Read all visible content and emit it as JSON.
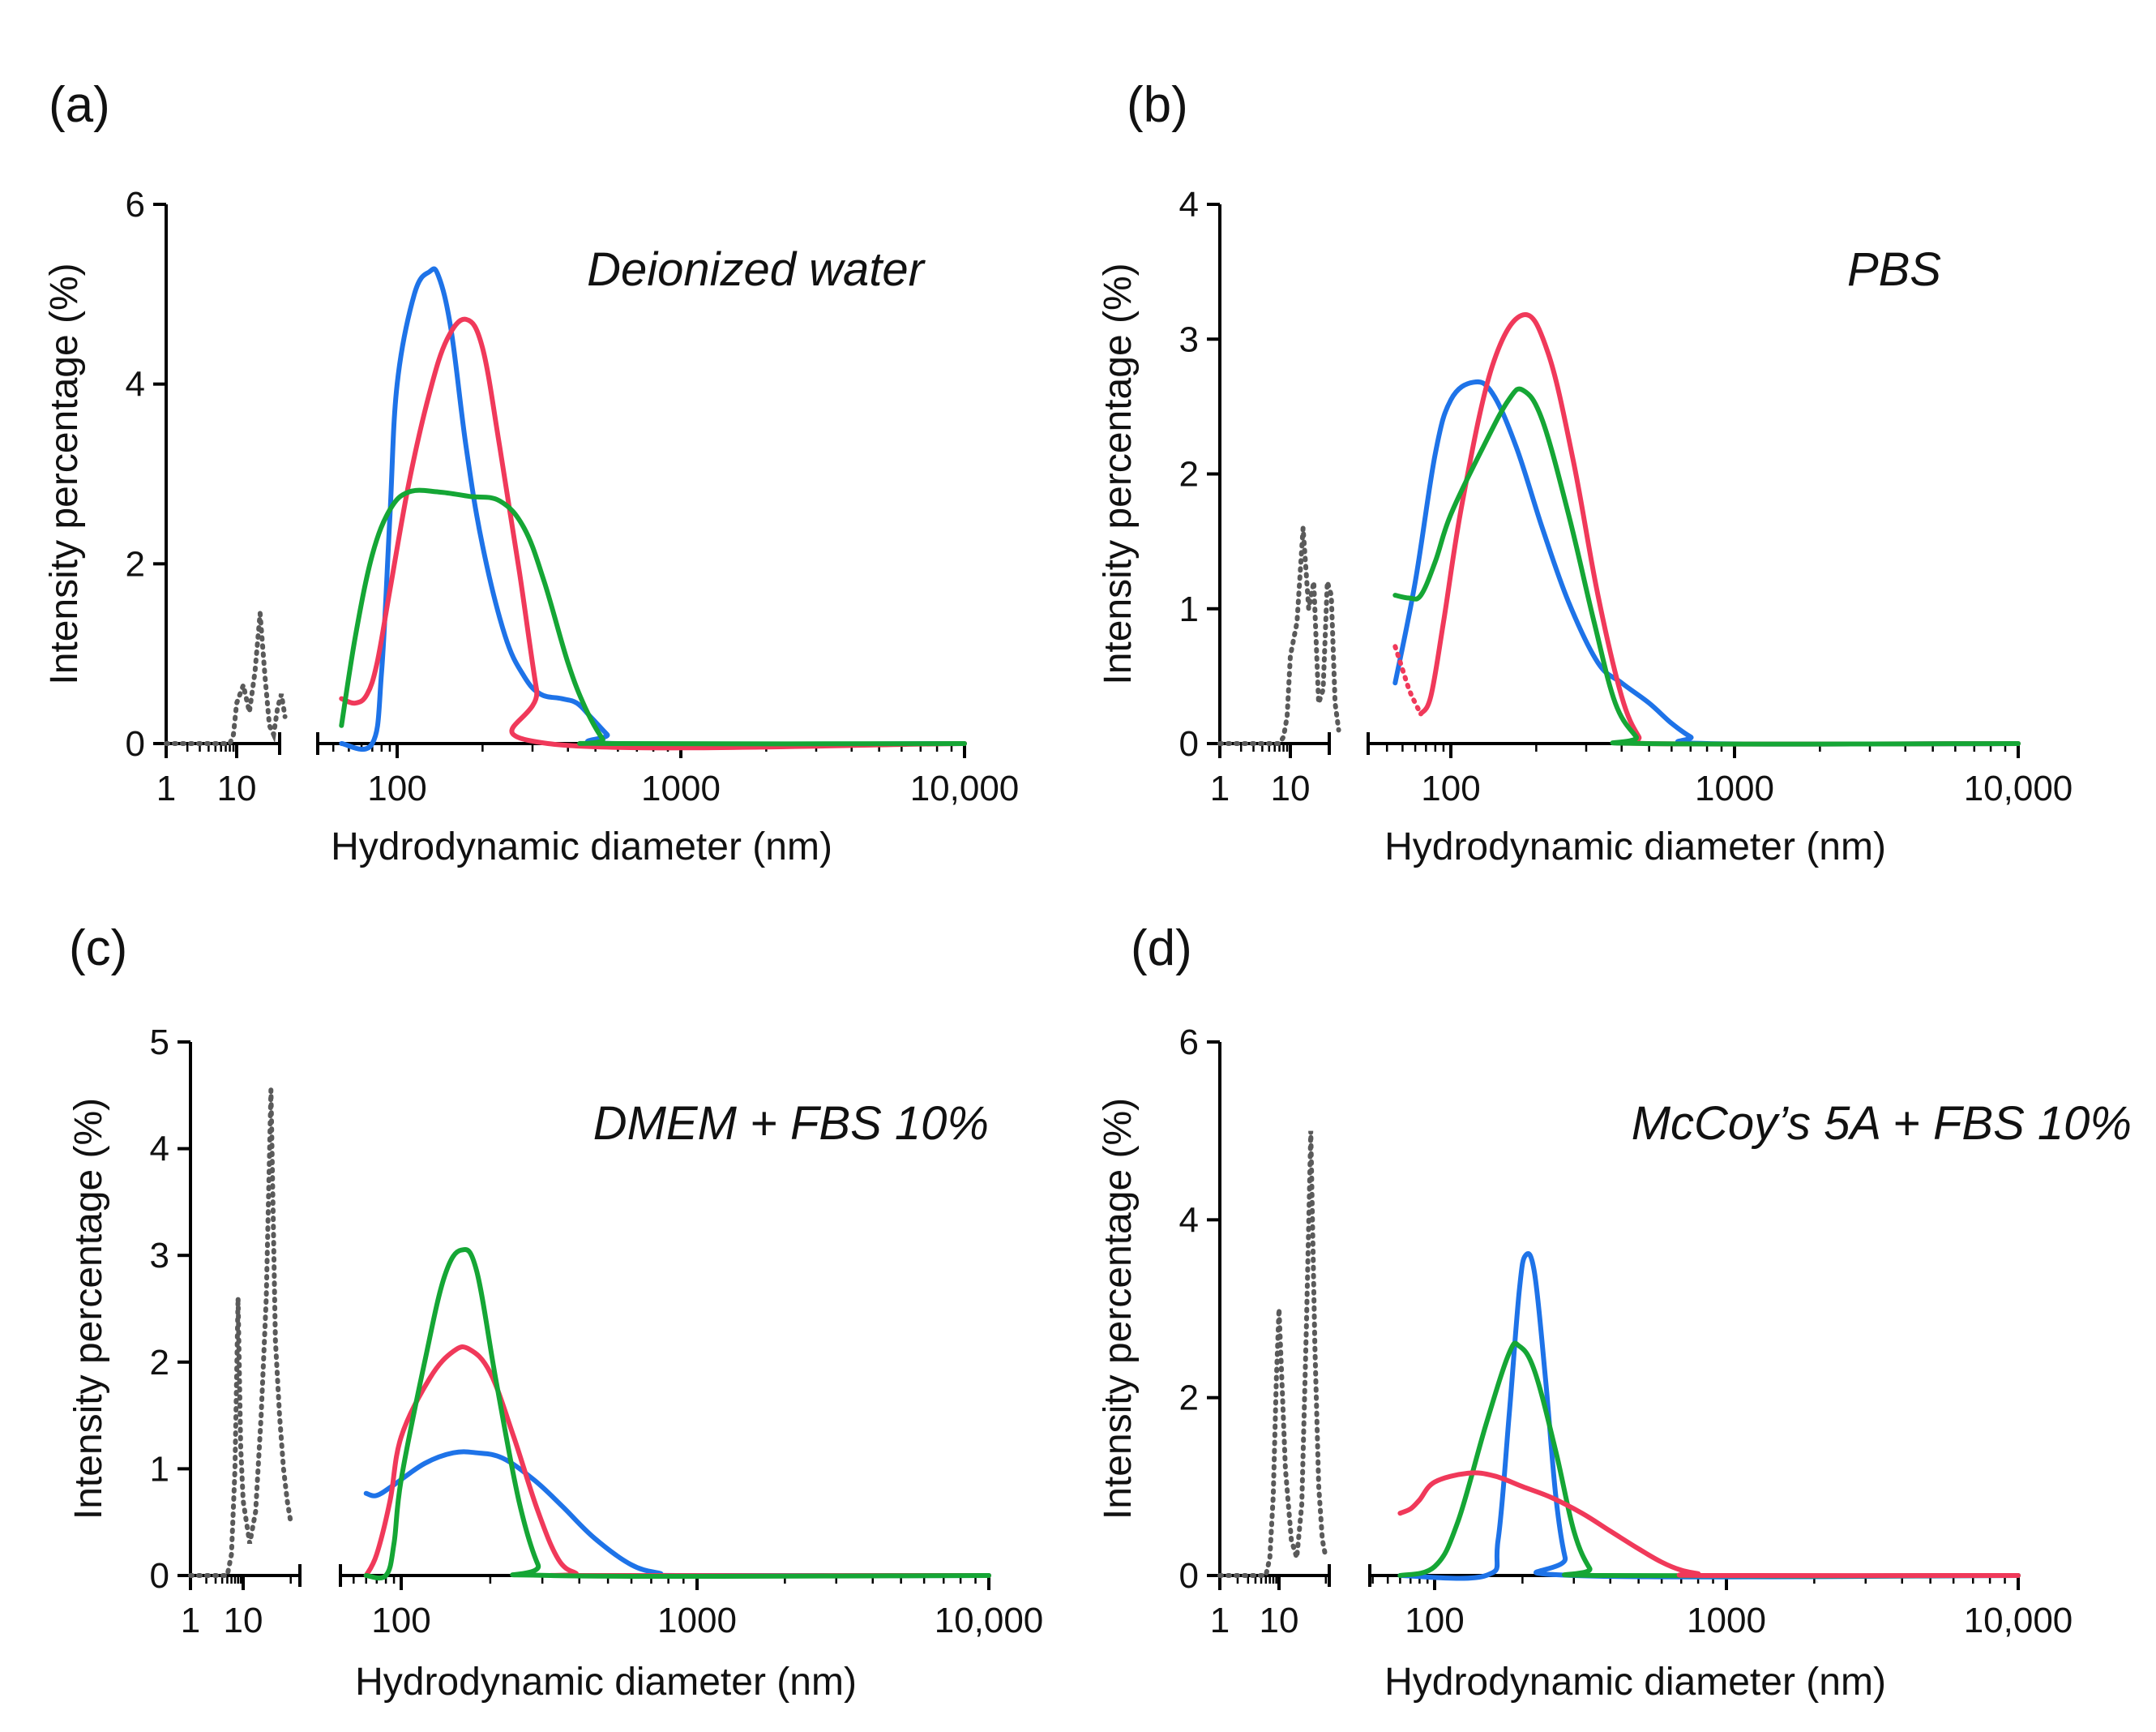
{
  "colors": {
    "blue": "#1e73e8",
    "red": "#f0395a",
    "green": "#15a635",
    "gray": "#5a5a5a"
  },
  "chart_data": [
    {
      "panel": "(a)",
      "title": "Deionized water",
      "type": "line",
      "xlabel": "Hydrodynamic diameter (nm)",
      "ylabel": "Intensity percentage (%)",
      "x_scale": "log",
      "x_ticks": [
        "1",
        "10",
        "100",
        "1000",
        "10,000"
      ],
      "x_segments": [
        [
          1,
          20
        ],
        [
          45,
          10000
        ]
      ],
      "ylim": [
        0,
        6
      ],
      "y_ticks": [
        0,
        2,
        4,
        6
      ],
      "grid": false,
      "series": [
        {
          "color": "gray",
          "style": "dotted",
          "x": [
            1,
            8,
            9,
            10,
            11,
            12,
            13,
            14,
            15,
            16,
            17,
            18,
            19,
            20
          ],
          "y": [
            0,
            0,
            0.1,
            0.45,
            0.65,
            0.35,
            0.8,
            1.45,
            0.75,
            0.2,
            0.1,
            0.4,
            0.55,
            0.3
          ]
        },
        {
          "color": "blue",
          "style": "solid",
          "x": [
            45,
            70,
            80,
            90,
            100,
            115,
            130,
            140,
            155,
            175,
            200,
            240,
            280,
            320,
            380,
            430,
            480,
            550,
            600,
            10000
          ],
          "y": [
            0,
            0,
            0.8,
            2.5,
            4.0,
            5.0,
            5.25,
            5.2,
            4.6,
            3.3,
            2.2,
            1.2,
            0.75,
            0.55,
            0.5,
            0.45,
            0.3,
            0.1,
            0,
            0
          ]
        },
        {
          "color": "red",
          "style": "solid",
          "x": [
            45,
            55,
            65,
            75,
            90,
            110,
            130,
            150,
            175,
            200,
            230,
            270,
            310,
            340,
            10000
          ],
          "y": [
            0.5,
            0.45,
            0.55,
            0.9,
            1.7,
            2.9,
            3.9,
            4.5,
            4.72,
            4.4,
            3.3,
            1.9,
            0.6,
            0,
            0
          ]
        },
        {
          "color": "green",
          "style": "solid",
          "x": [
            45,
            55,
            70,
            90,
            110,
            140,
            180,
            230,
            280,
            330,
            400,
            460,
            530,
            560,
            10000
          ],
          "y": [
            0.2,
            1.2,
            2.1,
            2.6,
            2.8,
            2.8,
            2.75,
            2.7,
            2.4,
            1.8,
            0.9,
            0.4,
            0.05,
            0,
            0
          ]
        }
      ]
    },
    {
      "panel": "(b)",
      "title": "PBS",
      "type": "line",
      "xlabel": "Hydrodynamic diameter (nm)",
      "ylabel": "Intensity percentage (%)",
      "x_scale": "log",
      "x_ticks": [
        "1",
        "10",
        "100",
        "1000",
        "10,000"
      ],
      "x_segments": [
        [
          1,
          20
        ],
        [
          45,
          10000
        ]
      ],
      "ylim": [
        0,
        4
      ],
      "y_ticks": [
        0,
        1,
        2,
        3,
        4
      ],
      "grid": false,
      "series": [
        {
          "color": "gray",
          "style": "dotted",
          "x": [
            1,
            7,
            8,
            9,
            10,
            11,
            12,
            13,
            14,
            15,
            16,
            17,
            18,
            19,
            20
          ],
          "y": [
            0,
            0,
            0.05,
            0.2,
            0.65,
            0.9,
            1.6,
            1.0,
            1.2,
            0.3,
            0.4,
            1.2,
            1.1,
            0.3,
            0.1
          ]
        },
        {
          "color": "blue",
          "style": "solid",
          "x": [
            45,
            60,
            80,
            100,
            120,
            140,
            170,
            210,
            260,
            330,
            400,
            500,
            600,
            700,
            800,
            10000
          ],
          "y": [
            0.45,
            1.2,
            2.15,
            2.55,
            2.68,
            2.6,
            2.2,
            1.6,
            1.05,
            0.6,
            0.45,
            0.3,
            0.15,
            0.05,
            0,
            0
          ]
        },
        {
          "color": "red",
          "style": "dotted",
          "x": [
            45,
            50,
            55,
            60,
            65
          ],
          "y": [
            0.72,
            0.55,
            0.4,
            0.3,
            0.22
          ]
        },
        {
          "color": "red",
          "style": "solid",
          "x": [
            65,
            75,
            90,
            110,
            140,
            180,
            220,
            270,
            330,
            400,
            460,
            500,
            10000
          ],
          "y": [
            0.22,
            0.35,
            0.9,
            1.8,
            2.8,
            3.18,
            2.9,
            2.1,
            1.1,
            0.35,
            0.05,
            0,
            0
          ]
        },
        {
          "color": "green",
          "style": "solid",
          "x": [
            45,
            55,
            65,
            80,
            100,
            130,
            160,
            180,
            210,
            260,
            320,
            380,
            450,
            480,
            10000
          ],
          "y": [
            1.1,
            1.08,
            1.1,
            1.35,
            1.7,
            2.2,
            2.55,
            2.62,
            2.4,
            1.7,
            0.9,
            0.3,
            0.05,
            0,
            0
          ]
        }
      ]
    },
    {
      "panel": "(c)",
      "title": "DMEM + FBS 10%",
      "type": "line",
      "xlabel": "Hydrodynamic diameter (nm)",
      "ylabel": "Intensity percentage (%)",
      "x_scale": "log",
      "x_ticks": [
        "1",
        "10",
        "100",
        "1000",
        "10,000"
      ],
      "x_segments": [
        [
          1,
          20
        ],
        [
          60,
          10000
        ]
      ],
      "ylim": [
        0,
        5
      ],
      "y_ticks": [
        0,
        1,
        2,
        3,
        4,
        5
      ],
      "grid": false,
      "series": [
        {
          "color": "gray",
          "style": "dotted",
          "x": [
            1,
            5,
            6,
            7,
            8,
            9,
            10,
            11,
            12,
            13,
            14,
            15,
            16,
            17,
            18,
            19,
            20
          ],
          "y": [
            0,
            0,
            0.2,
            1.0,
            2.6,
            1.2,
            0.7,
            0.3,
            0.6,
            1.5,
            2.6,
            4.55,
            2.2,
            1.5,
            1.0,
            0.7,
            0.5
          ]
        },
        {
          "color": "blue",
          "style": "solid",
          "x": [
            60,
            70,
            90,
            120,
            150,
            180,
            220,
            280,
            350,
            450,
            600,
            750,
            850,
            10000
          ],
          "y": [
            0.77,
            0.75,
            0.85,
            1.05,
            1.15,
            1.15,
            1.1,
            0.9,
            0.65,
            0.35,
            0.1,
            0.02,
            0,
            0
          ]
        },
        {
          "color": "red",
          "style": "solid",
          "x": [
            60,
            70,
            85,
            100,
            125,
            150,
            170,
            200,
            240,
            290,
            340,
            390,
            420,
            10000
          ],
          "y": [
            0,
            0.2,
            0.7,
            1.3,
            1.85,
            2.1,
            2.12,
            1.9,
            1.3,
            0.6,
            0.15,
            0.02,
            0,
            0
          ]
        },
        {
          "color": "green",
          "style": "solid",
          "x": [
            60,
            80,
            90,
            100,
            120,
            140,
            160,
            180,
            210,
            250,
            290,
            320,
            10000
          ],
          "y": [
            0,
            0,
            0.3,
            0.9,
            2.0,
            2.8,
            3.05,
            2.85,
            1.8,
            0.7,
            0.1,
            0,
            0
          ]
        }
      ]
    },
    {
      "panel": "(d)",
      "title": "McCoy’s 5A + FBS 10%",
      "type": "line",
      "xlabel": "Hydrodynamic diameter (nm)",
      "ylabel": "Intensity percentage (%)",
      "x_scale": "log",
      "x_ticks": [
        "1",
        "10",
        "100",
        "1000",
        "10,000"
      ],
      "x_segments": [
        [
          1,
          20
        ],
        [
          60,
          10000
        ]
      ],
      "ylim": [
        0,
        6
      ],
      "y_ticks": [
        0,
        2,
        4,
        6
      ],
      "grid": false,
      "series": [
        {
          "color": "gray",
          "style": "dotted",
          "x": [
            1,
            6,
            7,
            8,
            9,
            10,
            11,
            12,
            13,
            14,
            15,
            16,
            17,
            18,
            19,
            20
          ],
          "y": [
            0,
            0,
            0.2,
            0.9,
            2.2,
            3.0,
            1.2,
            0.4,
            0.2,
            0.8,
            2.8,
            5.0,
            2.6,
            1.0,
            0.4,
            0.2
          ]
        },
        {
          "color": "blue",
          "style": "solid",
          "x": [
            60,
            150,
            165,
            180,
            195,
            205,
            220,
            240,
            260,
            280,
            300,
            10000
          ],
          "y": [
            0,
            0,
            0.4,
            1.8,
            3.2,
            3.6,
            3.4,
            2.2,
            0.9,
            0.2,
            0,
            0
          ]
        },
        {
          "color": "green",
          "style": "solid",
          "x": [
            60,
            100,
            120,
            150,
            180,
            195,
            220,
            260,
            300,
            340,
            370,
            10000
          ],
          "y": [
            0,
            0.1,
            0.6,
            1.7,
            2.5,
            2.58,
            2.3,
            1.4,
            0.5,
            0.08,
            0,
            0
          ]
        },
        {
          "color": "red",
          "style": "solid",
          "x": [
            60,
            70,
            80,
            100,
            130,
            160,
            200,
            250,
            320,
            400,
            500,
            600,
            700,
            800,
            850,
            10000
          ],
          "y": [
            0.7,
            0.75,
            0.85,
            1.05,
            1.15,
            1.12,
            1.0,
            0.88,
            0.7,
            0.5,
            0.3,
            0.15,
            0.06,
            0.02,
            0,
            0
          ]
        }
      ]
    }
  ]
}
